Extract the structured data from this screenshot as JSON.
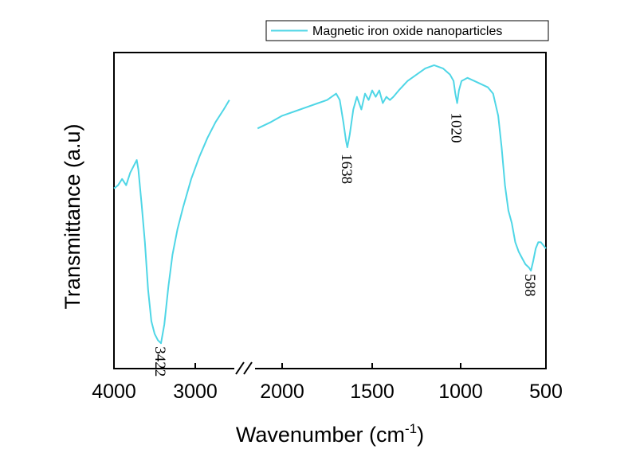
{
  "chart_data": {
    "type": "line",
    "xlabel": "Wavenumber (cm",
    "xlabel_sup": "-1",
    "xlabel_tail": ")",
    "ylabel": "Transmittance (a.u)",
    "x_reversed": true,
    "x_break": [
      2500,
      2300
    ],
    "xlim": [
      4000,
      500
    ],
    "ylim": [
      0,
      100
    ],
    "y_ticks_shown": false,
    "grid": false,
    "legend_position": "top-right, outside plot",
    "line_color": "#4fd6e6",
    "x_ticks": [
      {
        "value": 4000,
        "label": "4000"
      },
      {
        "value": 3000,
        "label": "3000"
      },
      {
        "value": 2000,
        "label": "2000"
      },
      {
        "value": 1500,
        "label": "1500"
      },
      {
        "value": 1000,
        "label": "1000"
      },
      {
        "value": 500,
        "label": "500"
      }
    ],
    "annotations": [
      {
        "label": "3422",
        "x": 3422,
        "y": 9
      },
      {
        "label": "1638",
        "x": 1638,
        "y": 70
      },
      {
        "label": "1020",
        "x": 1020,
        "y": 83
      },
      {
        "label": "588",
        "x": 588,
        "y": 32
      }
    ],
    "series": [
      {
        "name": "Magnetic iron oxide nanoparticles",
        "segments": [
          [
            [
              4000,
              57
            ],
            [
              3950,
              58
            ],
            [
              3900,
              60
            ],
            [
              3850,
              58
            ],
            [
              3800,
              62
            ],
            [
              3760,
              64
            ],
            [
              3720,
              66
            ],
            [
              3700,
              63
            ],
            [
              3660,
              52
            ],
            [
              3620,
              40
            ],
            [
              3580,
              25
            ],
            [
              3540,
              15
            ],
            [
              3500,
              11
            ],
            [
              3460,
              9
            ],
            [
              3422,
              8
            ],
            [
              3380,
              14
            ],
            [
              3330,
              26
            ],
            [
              3280,
              36
            ],
            [
              3220,
              44
            ],
            [
              3150,
              51
            ],
            [
              3050,
              60
            ],
            [
              2950,
              67
            ],
            [
              2850,
              73
            ],
            [
              2750,
              78
            ],
            [
              2650,
              82
            ],
            [
              2580,
              85
            ]
          ],
          [
            [
              2220,
              76
            ],
            [
              2100,
              78
            ],
            [
              2000,
              80
            ],
            [
              1900,
              82
            ],
            [
              1800,
              84
            ],
            [
              1750,
              85
            ],
            [
              1700,
              87
            ],
            [
              1680,
              85
            ],
            [
              1660,
              78
            ],
            [
              1645,
              72
            ],
            [
              1638,
              70
            ],
            [
              1625,
              74
            ],
            [
              1605,
              82
            ],
            [
              1585,
              86
            ],
            [
              1560,
              82
            ],
            [
              1540,
              87
            ],
            [
              1520,
              85
            ],
            [
              1500,
              88
            ],
            [
              1480,
              86
            ],
            [
              1460,
              88
            ],
            [
              1440,
              84
            ],
            [
              1420,
              86
            ],
            [
              1400,
              85
            ],
            [
              1380,
              86
            ],
            [
              1350,
              88
            ],
            [
              1300,
              91
            ],
            [
              1250,
              93
            ],
            [
              1200,
              95
            ],
            [
              1150,
              96
            ],
            [
              1100,
              95
            ],
            [
              1060,
              93
            ],
            [
              1040,
              91
            ],
            [
              1030,
              87
            ],
            [
              1020,
              84
            ],
            [
              1010,
              88
            ],
            [
              995,
              91
            ],
            [
              960,
              92
            ],
            [
              920,
              91
            ],
            [
              880,
              90
            ],
            [
              840,
              89
            ],
            [
              810,
              87
            ],
            [
              780,
              80
            ],
            [
              760,
              70
            ],
            [
              740,
              58
            ],
            [
              720,
              50
            ],
            [
              700,
              46
            ],
            [
              680,
              40
            ],
            [
              660,
              37
            ],
            [
              640,
              35
            ],
            [
              620,
              33
            ],
            [
              600,
              32
            ],
            [
              588,
              31
            ],
            [
              575,
              34
            ],
            [
              560,
              38
            ],
            [
              545,
              40
            ],
            [
              530,
              40
            ],
            [
              515,
              39
            ],
            [
              500,
              38
            ]
          ]
        ]
      }
    ]
  }
}
